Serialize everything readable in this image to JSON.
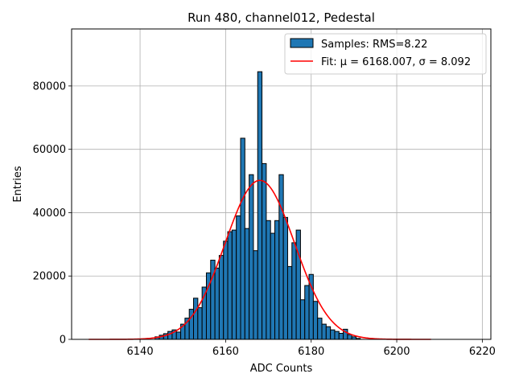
{
  "chart_data": {
    "type": "bar",
    "title": "Run 480, channel012, Pedestal",
    "xlabel": "ADC Counts",
    "ylabel": "Entries",
    "xlim": [
      6124,
      6222
    ],
    "ylim": [
      0,
      98000
    ],
    "x_ticks": [
      6140,
      6160,
      6180,
      6200,
      6220
    ],
    "x_tick_labels": [
      "6140",
      "6160",
      "6180",
      "6200",
      "6220"
    ],
    "y_ticks": [
      0,
      20000,
      40000,
      60000,
      80000
    ],
    "y_tick_labels": [
      "0",
      "20000",
      "40000",
      "60000",
      "80000"
    ],
    "grid": true,
    "legend_position": "top-right",
    "colors": {
      "bar_fill": "#1f77b4",
      "bar_edge": "#000000",
      "fit_line": "#ff0000",
      "grid": "#b0b0b0"
    },
    "histogram": {
      "name": "Samples: RMS=8.22",
      "bin_width": 1,
      "bins": [
        6144,
        6145,
        6146,
        6147,
        6148,
        6149,
        6150,
        6151,
        6152,
        6153,
        6154,
        6155,
        6156,
        6157,
        6158,
        6159,
        6160,
        6161,
        6162,
        6163,
        6164,
        6165,
        6166,
        6167,
        6168,
        6169,
        6170,
        6171,
        6172,
        6173,
        6174,
        6175,
        6176,
        6177,
        6178,
        6179,
        6180,
        6181,
        6182,
        6183,
        6184,
        6185,
        6186,
        6187,
        6188,
        6189,
        6190,
        6191
      ],
      "values": [
        800,
        1300,
        1800,
        2500,
        3000,
        2300,
        4800,
        6700,
        9500,
        13000,
        10000,
        16500,
        21000,
        25000,
        22500,
        26500,
        31000,
        34000,
        34500,
        39000,
        63500,
        35000,
        52000,
        28000,
        84500,
        55500,
        37500,
        33500,
        37500,
        52000,
        38500,
        23000,
        30500,
        34500,
        12500,
        17000,
        20500,
        12000,
        6700,
        4800,
        4000,
        3000,
        2500,
        1900,
        3200,
        1500,
        800,
        300
      ]
    },
    "fit": {
      "name": "Fit: μ = 6168.007, σ = 8.092",
      "mu": 6168.007,
      "sigma": 8.092,
      "amplitude": 50200,
      "x_range": [
        6128,
        6208
      ]
    }
  }
}
